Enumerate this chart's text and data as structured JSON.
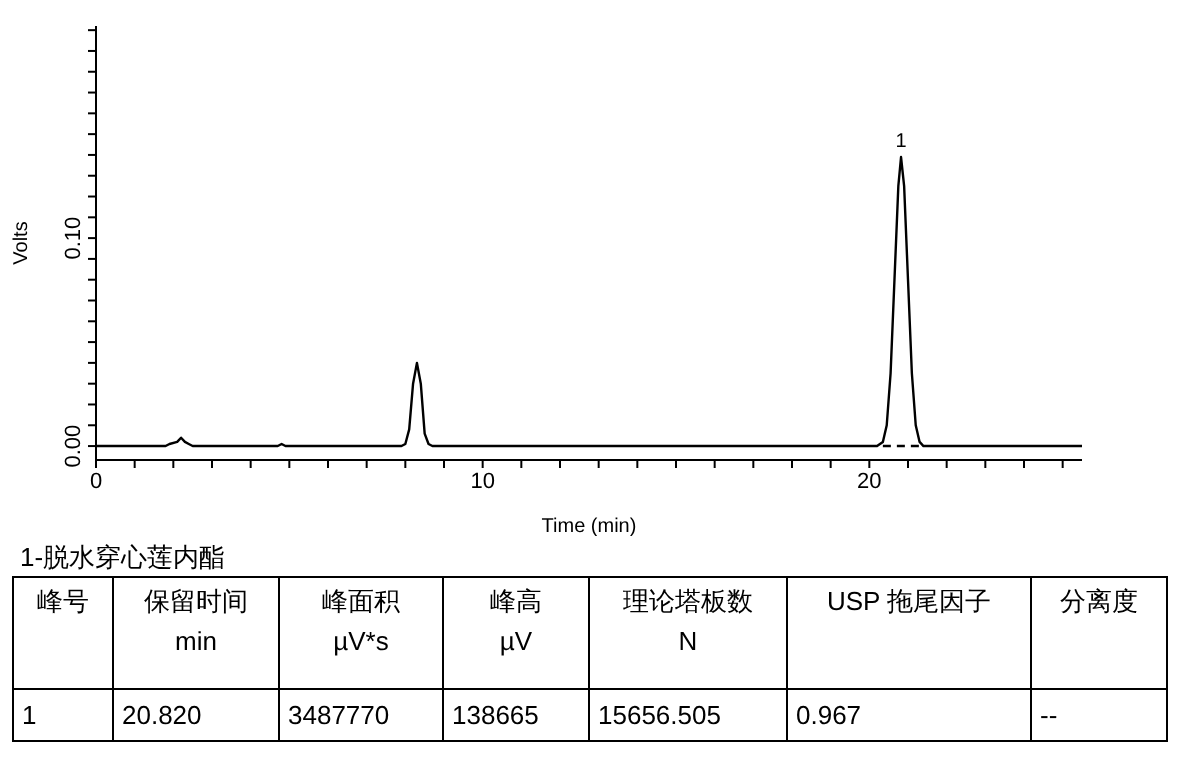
{
  "chart_data": {
    "type": "line",
    "xlabel": "Time (min)",
    "ylabel": "Volts",
    "xlim": [
      0,
      25.5
    ],
    "ylim": [
      -0.0067,
      0.202
    ],
    "xticks": [
      0,
      {
        "value": 1,
        "label": null
      },
      {
        "value": 2,
        "label": null
      },
      {
        "value": 3,
        "label": null
      },
      {
        "value": 4,
        "label": null
      },
      {
        "value": 5,
        "label": null
      },
      {
        "value": 6,
        "label": null
      },
      {
        "value": 7,
        "label": null
      },
      {
        "value": 8,
        "label": null
      },
      {
        "value": 9,
        "label": null
      },
      10,
      {
        "value": 11,
        "label": null
      },
      {
        "value": 12,
        "label": null
      },
      {
        "value": 13,
        "label": null
      },
      {
        "value": 14,
        "label": null
      },
      {
        "value": 15,
        "label": null
      },
      {
        "value": 16,
        "label": null
      },
      {
        "value": 17,
        "label": null
      },
      {
        "value": 18,
        "label": null
      },
      {
        "value": 19,
        "label": null
      },
      20,
      {
        "value": 21,
        "label": null
      },
      {
        "value": 22,
        "label": null
      },
      {
        "value": 23,
        "label": null
      },
      {
        "value": 24,
        "label": null
      },
      {
        "value": 25,
        "label": null
      }
    ],
    "yticks": [
      {
        "value": 0,
        "label": "0.00"
      },
      {
        "value": 0.01,
        "label": null
      },
      {
        "value": 0.02,
        "label": null
      },
      {
        "value": 0.03,
        "label": null
      },
      {
        "value": 0.04,
        "label": null
      },
      {
        "value": 0.05,
        "label": null
      },
      {
        "value": 0.06,
        "label": null
      },
      {
        "value": 0.07,
        "label": null
      },
      {
        "value": 0.08,
        "label": null
      },
      {
        "value": 0.09,
        "label": null
      },
      {
        "value": 0.1,
        "label": "0.10"
      },
      {
        "value": 0.11,
        "label": null
      },
      {
        "value": 0.12,
        "label": null
      },
      {
        "value": 0.13,
        "label": null
      },
      {
        "value": 0.14,
        "label": null
      },
      {
        "value": 0.15,
        "label": null
      },
      {
        "value": 0.16,
        "label": null
      },
      {
        "value": 0.17,
        "label": null
      },
      {
        "value": 0.18,
        "label": null
      },
      {
        "value": 0.19,
        "label": null
      },
      {
        "value": 0.2,
        "label": null
      }
    ],
    "marker": "none",
    "line_style": "solid",
    "series": [
      {
        "color": "#000000",
        "x": [
          0,
          1.8,
          1.9,
          2.1,
          2.2,
          2.3,
          2.4,
          2.5,
          4.7,
          4.8,
          4.9,
          7.9,
          8.0,
          8.1,
          8.2,
          8.3,
          8.4,
          8.5,
          8.6,
          8.7,
          20.2,
          20.35,
          20.45,
          20.55,
          20.65,
          20.75,
          20.82,
          20.9,
          21.0,
          21.1,
          21.2,
          21.3,
          21.4,
          25.5
        ],
        "values": [
          0,
          0,
          0.001,
          0.002,
          0.004,
          0.002,
          0.001,
          0,
          0,
          0.001,
          0,
          0,
          0.001,
          0.008,
          0.03,
          0.04,
          0.03,
          0.006,
          0.001,
          0,
          0,
          0.002,
          0.01,
          0.035,
          0.08,
          0.125,
          0.139,
          0.125,
          0.08,
          0.035,
          0.01,
          0.002,
          0,
          0
        ]
      },
      {
        "color": "#000000",
        "line_style": "dashed",
        "x": [
          20.35,
          21.35
        ],
        "values": [
          0,
          0
        ]
      }
    ],
    "annotations": [
      {
        "text": "1",
        "x": 20.82,
        "y": 0.139
      },
      "1-脱水穿心莲内酯",
      "峰号",
      "保留时间\nmin",
      "峰面积\nµV*s",
      "峰高\nµV",
      "理论塔板数\nN",
      "USP 拖尾因子",
      "分离度",
      "1",
      "20.820",
      "3487770",
      "138665",
      "15656.505",
      "0.967",
      "--"
    ]
  }
}
